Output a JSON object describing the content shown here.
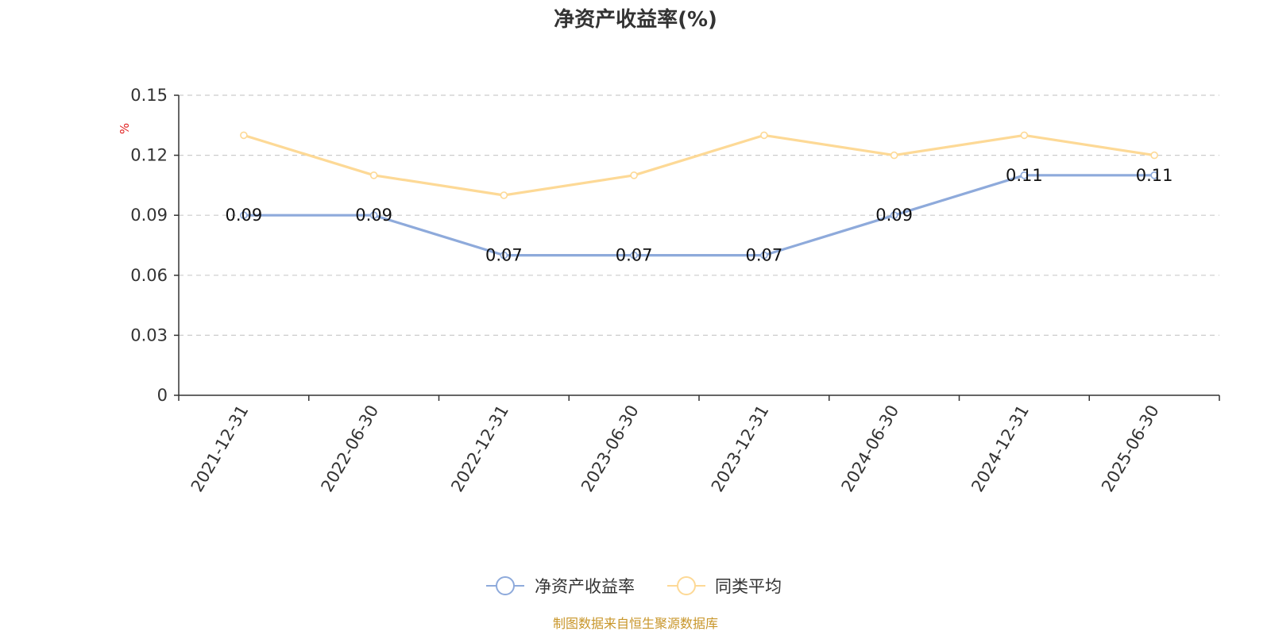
{
  "chart_data": {
    "type": "line",
    "title": "净资产收益率(%)",
    "ylabel": "%",
    "xlabel": "",
    "categories": [
      "2021-12-31",
      "2022-06-30",
      "2022-12-31",
      "2023-06-30",
      "2023-12-31",
      "2024-06-30",
      "2024-12-31",
      "2025-06-30"
    ],
    "y_ticks": [
      "0",
      "0.03",
      "0.06",
      "0.09",
      "0.12",
      "0.15"
    ],
    "ylim": [
      0,
      0.15
    ],
    "grid": true,
    "legend_position": "bottom-center",
    "series": [
      {
        "name": "净资产收益率",
        "values": [
          0.09,
          0.09,
          0.07,
          0.07,
          0.07,
          0.09,
          0.11,
          0.11
        ],
        "labels": [
          "0.09",
          "0.09",
          "0.07",
          "0.07",
          "0.07",
          "0.09",
          "0.11",
          "0.11"
        ],
        "color": "#8eaadb"
      },
      {
        "name": "同类平均",
        "values": [
          0.13,
          0.11,
          0.1,
          0.11,
          0.13,
          0.12,
          0.13,
          0.12
        ],
        "color": "#fdd996"
      }
    ]
  },
  "source_note": "制图数据来自恒生聚源数据库"
}
